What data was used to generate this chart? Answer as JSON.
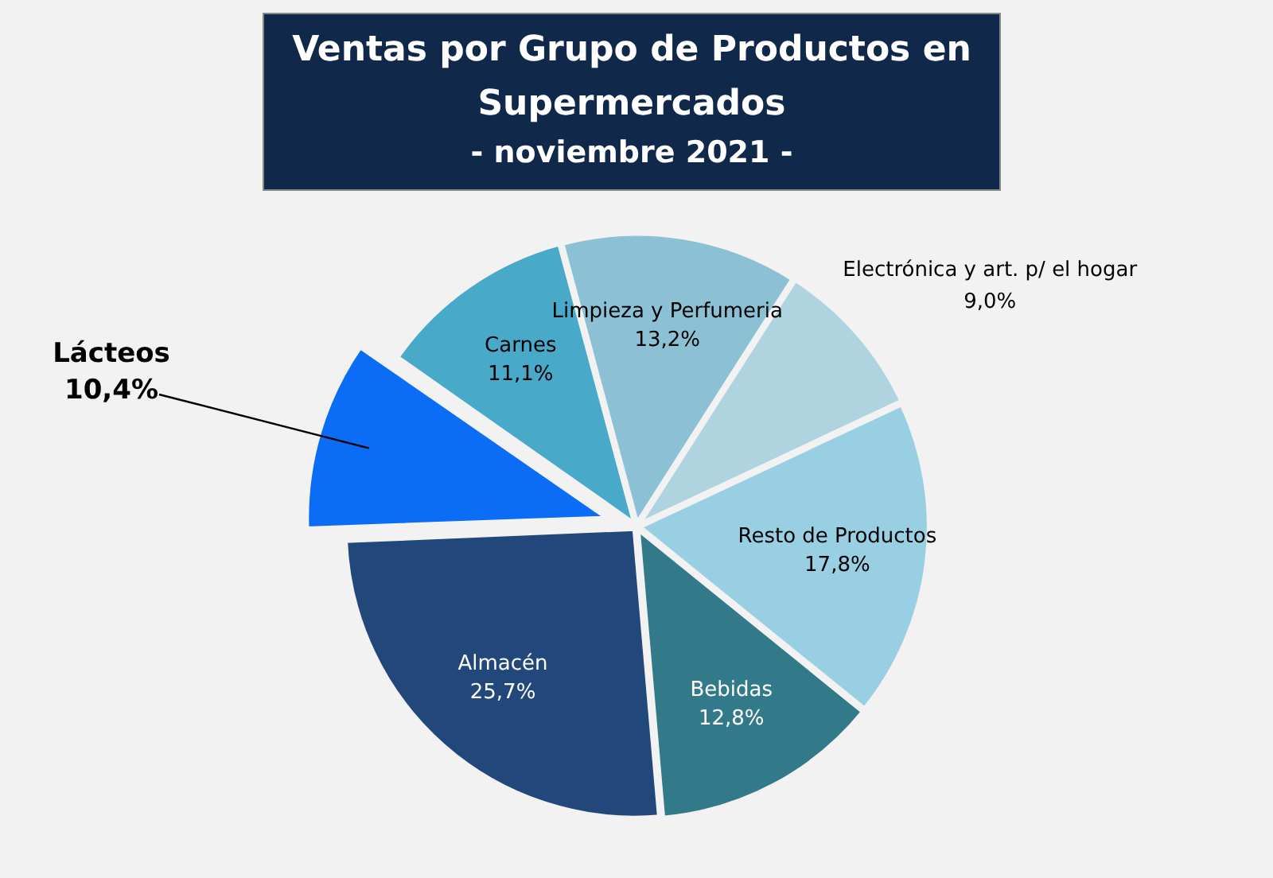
{
  "chart_data": {
    "type": "pie",
    "title": "Ventas por Grupo de Productos en Supermercados",
    "subtitle": "- noviembre 2021 -",
    "categories": [
      "Limpieza y Perfumeria",
      "Electrónica y art. p/ el hogar",
      "Resto de Productos",
      "Bebidas",
      "Almacén",
      "Lácteos",
      "Carnes"
    ],
    "values": [
      13.2,
      9.0,
      17.8,
      12.8,
      25.7,
      10.4,
      11.1
    ],
    "colors": [
      "#8cc0d4",
      "#b0d3e0",
      "#98cfe2",
      "#327a8a",
      "#22477a",
      "#0b6cf5",
      "#48a9c8"
    ],
    "value_labels": [
      "13,2%",
      "9,0%",
      "17,8%",
      "12,8%",
      "25,7%",
      "10,4%",
      "11,1%"
    ],
    "legend": false
  }
}
